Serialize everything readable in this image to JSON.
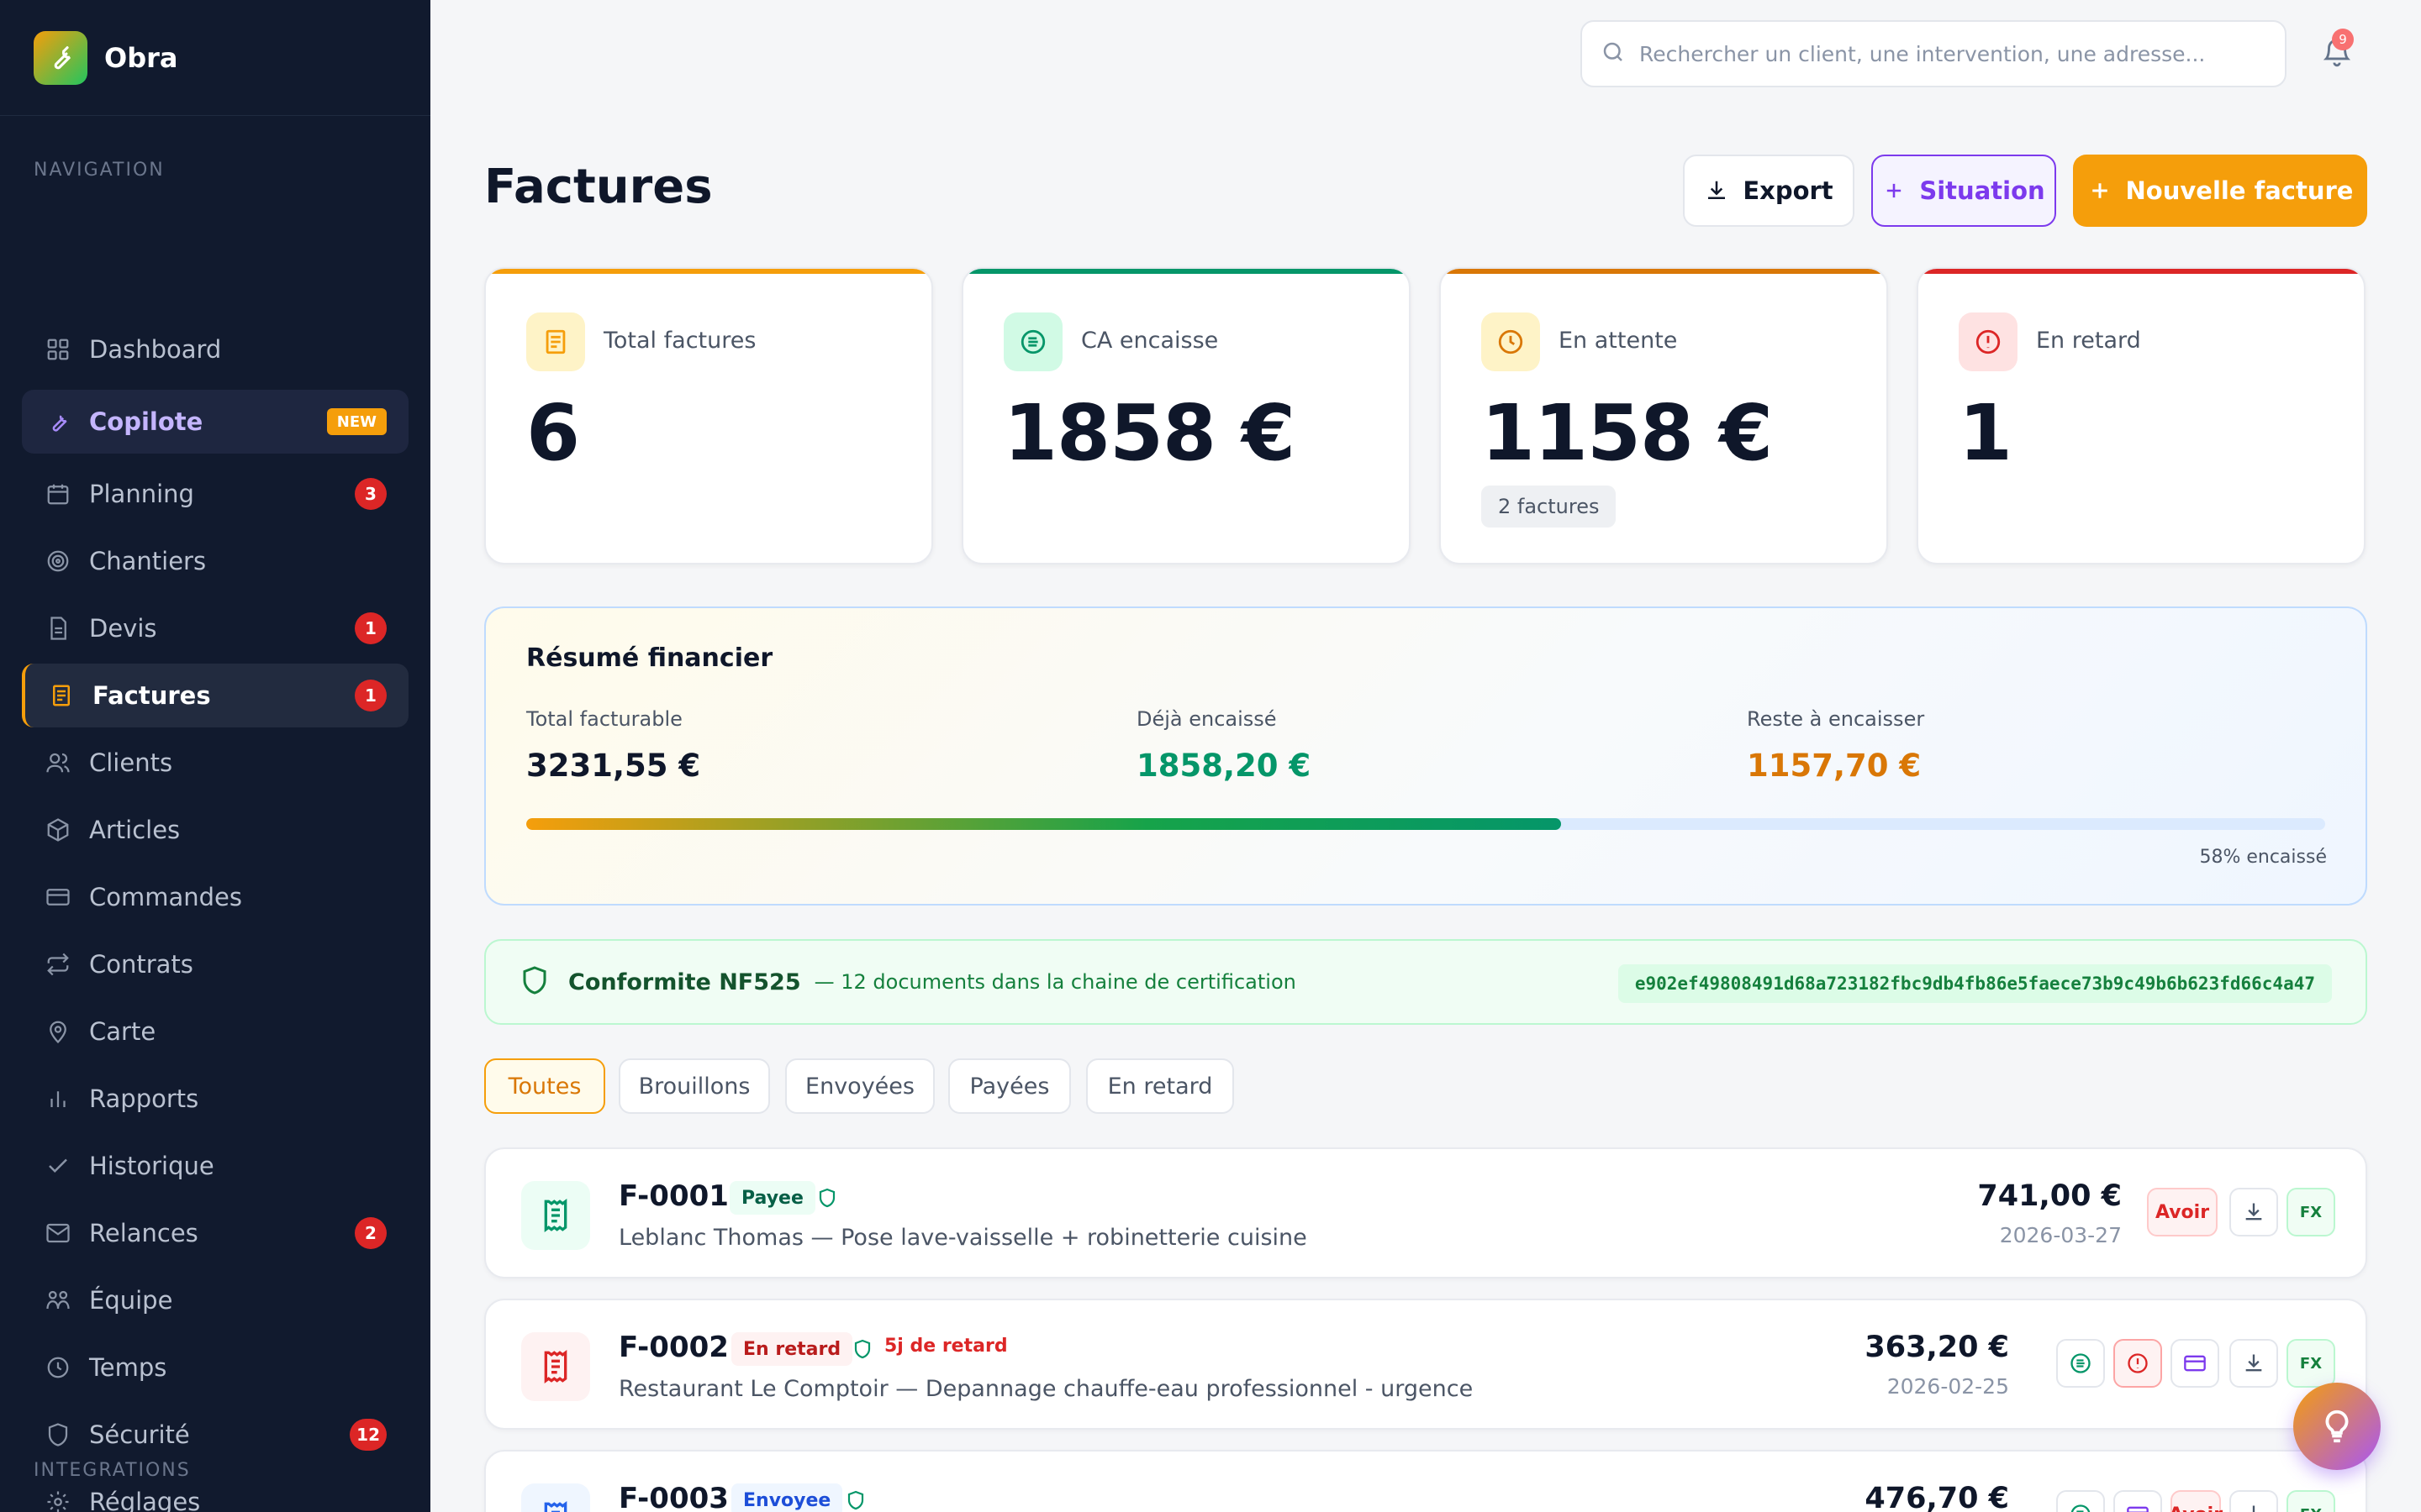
{
  "app": {
    "name": "Obra"
  },
  "sidebar": {
    "nav_label": "NAVIGATION",
    "integrations_label": "INTEGRATIONS",
    "items": [
      {
        "label": "Dashboard",
        "icon": "grid-icon"
      },
      {
        "label": "Copilote",
        "icon": "wrench-icon",
        "tag": "NEW"
      },
      {
        "label": "Planning",
        "icon": "calendar-icon",
        "badge": "3"
      },
      {
        "label": "Chantiers",
        "icon": "target-icon"
      },
      {
        "label": "Devis",
        "icon": "document-icon",
        "badge": "1"
      },
      {
        "label": "Factures",
        "icon": "invoice-icon",
        "badge": "1"
      },
      {
        "label": "Clients",
        "icon": "users-icon"
      },
      {
        "label": "Articles",
        "icon": "box-icon"
      },
      {
        "label": "Commandes",
        "icon": "card-icon"
      },
      {
        "label": "Contrats",
        "icon": "repeat-icon"
      },
      {
        "label": "Carte",
        "icon": "map-pin-icon"
      },
      {
        "label": "Rapports",
        "icon": "bar-chart-icon"
      },
      {
        "label": "Historique",
        "icon": "check-icon"
      },
      {
        "label": "Relances",
        "icon": "mail-icon",
        "badge": "2"
      },
      {
        "label": "Équipe",
        "icon": "team-icon"
      },
      {
        "label": "Temps",
        "icon": "clock-icon"
      },
      {
        "label": "Sécurité",
        "icon": "shield-icon",
        "badge": "12"
      },
      {
        "label": "Réglages",
        "icon": "gear-icon"
      }
    ]
  },
  "topbar": {
    "search_placeholder": "Rechercher un client, une intervention, une adresse...",
    "notification_count": "9"
  },
  "header": {
    "title": "Factures",
    "export_label": "Export",
    "situation_label": "Situation",
    "new_label": "Nouvelle facture"
  },
  "kpis": [
    {
      "label": "Total factures",
      "value": "6",
      "color": "#f59e0b",
      "icon": "invoice-icon"
    },
    {
      "label": "CA encaisse",
      "value": "1858 €",
      "color": "#059669",
      "icon": "money-icon"
    },
    {
      "label": "En attente",
      "value": "1158 €",
      "sub": "2 factures",
      "color": "#d97706",
      "icon": "clock-icon"
    },
    {
      "label": "En retard",
      "value": "1",
      "color": "#dc2626",
      "icon": "alert-icon"
    }
  ],
  "summary": {
    "title": "Résumé financier",
    "total_label": "Total facturable",
    "total_value": "3231,55 €",
    "paid_label": "Déjà encaissé",
    "paid_value": "1858,20 €",
    "remaining_label": "Reste à encaisser",
    "remaining_value": "1157,70 €",
    "progress_percent": 57.5,
    "progress_label": "58% encaissé"
  },
  "compliance": {
    "title": "Conformite NF525",
    "description": "— 12 documents dans la chaine de certification",
    "hash": "e902ef49808491d68a723182fbc9db4fb86e5faece73b9c49b6b623fd66c4a47"
  },
  "filters": [
    "Toutes",
    "Brouillons",
    "Envoyées",
    "Payées",
    "En retard"
  ],
  "invoices": [
    {
      "number": "F-0001",
      "status": "Payee",
      "description": "Leblanc Thomas — Pose lave-vaisselle + robinetterie cuisine",
      "amount": "741,00 €",
      "date": "2026-03-27",
      "avoir": "Avoir",
      "fx": "FX"
    },
    {
      "number": "F-0002",
      "status": "En retard",
      "late": "5j de retard",
      "description": "Restaurant Le Comptoir — Depannage chauffe-eau professionnel - urgence",
      "amount": "363,20 €",
      "date": "2026-02-25",
      "fx": "FX"
    },
    {
      "number": "F-0003",
      "status": "Envoyee",
      "amount": "476,70 €",
      "avoir": "Avoir",
      "fx": "FX"
    }
  ],
  "colors": {
    "accent": "#f59e0b",
    "sidebar": "#111a2e",
    "success": "#059669",
    "danger": "#dc2626",
    "purple": "#7c3aed"
  }
}
